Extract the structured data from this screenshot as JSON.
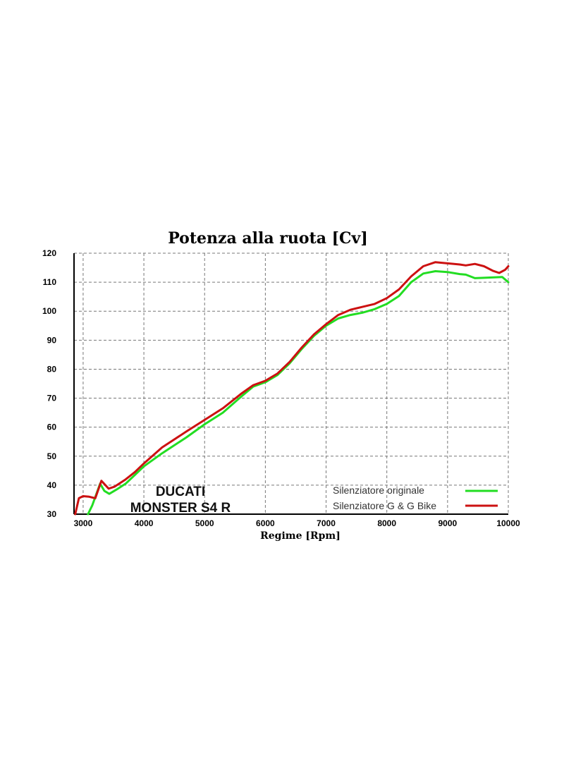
{
  "chart_data": {
    "type": "line",
    "title": "Potenza alla ruota [Cv]",
    "xlabel": "Regime [Rpm]",
    "ylabel": "",
    "xlim": [
      2850,
      10000
    ],
    "ylim": [
      30,
      120
    ],
    "xticks": [
      3000,
      4000,
      5000,
      6000,
      7000,
      8000,
      9000,
      10000
    ],
    "yticks": [
      30,
      40,
      50,
      60,
      70,
      80,
      90,
      100,
      110,
      120
    ],
    "grid": true,
    "legend_position": "bottom-right",
    "annotation": [
      "DUCATI",
      "MONSTER S4 R"
    ],
    "series": [
      {
        "name": "Silenziatore originale",
        "color": "#22dd22",
        "points": [
          [
            3080,
            30
          ],
          [
            3150,
            33
          ],
          [
            3280,
            40.5
          ],
          [
            3350,
            38
          ],
          [
            3430,
            37
          ],
          [
            3550,
            38.5
          ],
          [
            3700,
            40.5
          ],
          [
            3850,
            43.5
          ],
          [
            4000,
            46.5
          ],
          [
            4300,
            51
          ],
          [
            4700,
            56.5
          ],
          [
            5000,
            61
          ],
          [
            5300,
            65
          ],
          [
            5600,
            70.5
          ],
          [
            5800,
            74
          ],
          [
            6000,
            75.5
          ],
          [
            6200,
            78
          ],
          [
            6400,
            82
          ],
          [
            6600,
            87
          ],
          [
            6800,
            91.5
          ],
          [
            7000,
            95
          ],
          [
            7200,
            97.5
          ],
          [
            7400,
            98.7
          ],
          [
            7600,
            99.5
          ],
          [
            7800,
            100.7
          ],
          [
            8000,
            102.5
          ],
          [
            8200,
            105.2
          ],
          [
            8400,
            110
          ],
          [
            8600,
            113
          ],
          [
            8800,
            113.8
          ],
          [
            9000,
            113.5
          ],
          [
            9200,
            112.8
          ],
          [
            9300,
            112.6
          ],
          [
            9450,
            111.4
          ],
          [
            9600,
            111.5
          ],
          [
            9800,
            111.7
          ],
          [
            9900,
            111.8
          ],
          [
            10000,
            110
          ]
        ]
      },
      {
        "name": "Silenziatore G & G Bike",
        "color": "#cc1111",
        "points": [
          [
            2870,
            30
          ],
          [
            2930,
            35.5
          ],
          [
            3000,
            36.2
          ],
          [
            3100,
            36
          ],
          [
            3200,
            35.5
          ],
          [
            3300,
            41.5
          ],
          [
            3420,
            38.8
          ],
          [
            3520,
            39.5
          ],
          [
            3700,
            42
          ],
          [
            3850,
            44.5
          ],
          [
            4000,
            47.5
          ],
          [
            4300,
            53
          ],
          [
            4700,
            58.5
          ],
          [
            5000,
            62.5
          ],
          [
            5300,
            66.5
          ],
          [
            5600,
            71.5
          ],
          [
            5800,
            74.5
          ],
          [
            6000,
            76
          ],
          [
            6200,
            78.5
          ],
          [
            6400,
            82.5
          ],
          [
            6600,
            87.5
          ],
          [
            6800,
            92
          ],
          [
            7000,
            95.5
          ],
          [
            7200,
            98.7
          ],
          [
            7400,
            100.5
          ],
          [
            7600,
            101.5
          ],
          [
            7800,
            102.5
          ],
          [
            8000,
            104.5
          ],
          [
            8200,
            107.5
          ],
          [
            8400,
            112
          ],
          [
            8600,
            115.5
          ],
          [
            8800,
            116.9
          ],
          [
            9000,
            116.5
          ],
          [
            9200,
            116.1
          ],
          [
            9300,
            115.8
          ],
          [
            9450,
            116.3
          ],
          [
            9600,
            115.5
          ],
          [
            9750,
            113.9
          ],
          [
            9850,
            113.2
          ],
          [
            9950,
            114.3
          ],
          [
            10000,
            115.5
          ]
        ]
      }
    ]
  }
}
